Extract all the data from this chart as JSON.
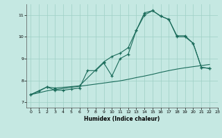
{
  "xlabel": "Humidex (Indice chaleur)",
  "xlim": [
    -0.5,
    23
  ],
  "ylim": [
    6.75,
    11.5
  ],
  "yticks": [
    7,
    8,
    9,
    10,
    11
  ],
  "xticks": [
    0,
    1,
    2,
    3,
    4,
    5,
    6,
    7,
    8,
    9,
    10,
    11,
    12,
    13,
    14,
    15,
    16,
    17,
    18,
    19,
    20,
    21,
    22,
    23
  ],
  "bg_color": "#c5e8e2",
  "line_color": "#1a6b5a",
  "line1_x": [
    0,
    1,
    2,
    3,
    4,
    5,
    6,
    7,
    8,
    9,
    10,
    11,
    12,
    13,
    14,
    15,
    16,
    17,
    18,
    19,
    20,
    21,
    22
  ],
  "line1_y": [
    7.35,
    7.5,
    7.7,
    7.55,
    7.55,
    7.6,
    7.65,
    8.45,
    8.45,
    8.8,
    8.2,
    9.0,
    9.2,
    10.3,
    11.1,
    11.2,
    10.95,
    10.8,
    10.05,
    10.05,
    9.7,
    8.6,
    8.55
  ],
  "line2_x": [
    0,
    2,
    3,
    6,
    9,
    10,
    11,
    12,
    13,
    14,
    15,
    16,
    17,
    18,
    19,
    20,
    21,
    22
  ],
  "line2_y": [
    7.35,
    7.7,
    7.65,
    7.75,
    8.85,
    9.1,
    9.25,
    9.5,
    10.3,
    11.0,
    11.2,
    10.95,
    10.8,
    10.0,
    10.0,
    9.7,
    8.6,
    8.55
  ],
  "line3_x": [
    0,
    1,
    2,
    3,
    4,
    5,
    6,
    7,
    8,
    9,
    10,
    11,
    12,
    13,
    14,
    15,
    16,
    17,
    18,
    19,
    20,
    21,
    22
  ],
  "line3_y": [
    7.35,
    7.43,
    7.52,
    7.58,
    7.63,
    7.68,
    7.73,
    7.78,
    7.83,
    7.88,
    7.93,
    7.98,
    8.05,
    8.13,
    8.2,
    8.28,
    8.37,
    8.45,
    8.52,
    8.58,
    8.63,
    8.68,
    8.73
  ]
}
